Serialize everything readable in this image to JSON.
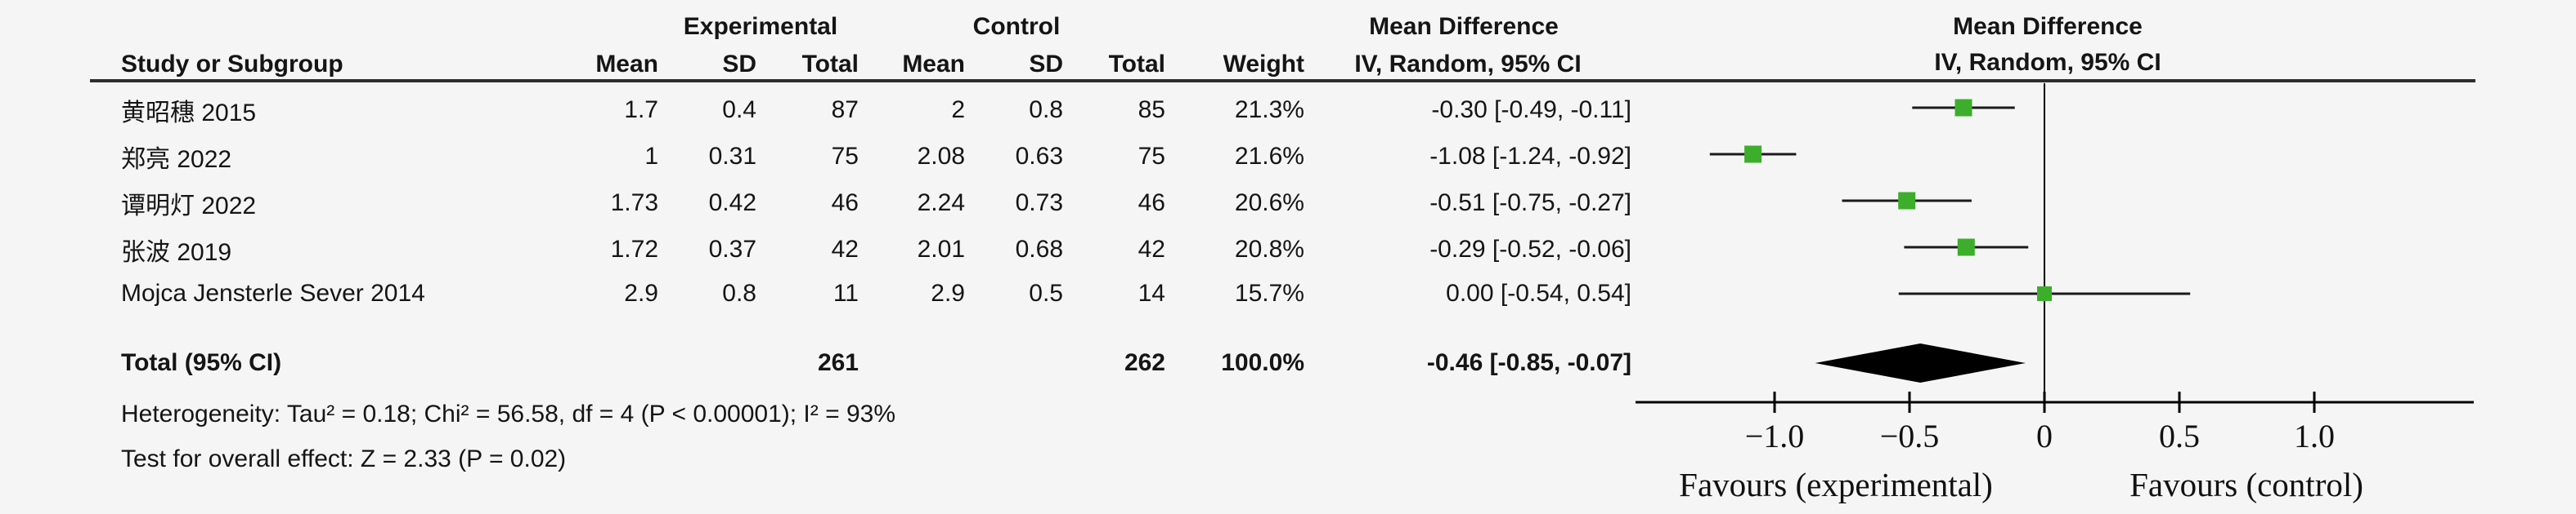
{
  "table": {
    "group_headers": {
      "experimental": "Experimental",
      "control": "Control",
      "md_text": "Mean Difference",
      "md_plot": "Mean Difference"
    },
    "sub_headers": {
      "study": "Study or Subgroup",
      "e_mean": "Mean",
      "e_sd": "SD",
      "e_total": "Total",
      "c_mean": "Mean",
      "c_sd": "SD",
      "c_total": "Total",
      "weight": "Weight",
      "ci": "IV, Random, 95% CI",
      "ci_plot": "IV, Random, 95% CI"
    },
    "rows": [
      {
        "study": "黄昭穗 2015",
        "e_mean": "1.7",
        "e_sd": "0.4",
        "e_total": "87",
        "c_mean": "2",
        "c_sd": "0.8",
        "c_total": "85",
        "weight": "21.3%",
        "ci": "-0.30 [-0.49, -0.11]"
      },
      {
        "study": "郑亮 2022",
        "e_mean": "1",
        "e_sd": "0.31",
        "e_total": "75",
        "c_mean": "2.08",
        "c_sd": "0.63",
        "c_total": "75",
        "weight": "21.6%",
        "ci": "-1.08 [-1.24, -0.92]"
      },
      {
        "study": "谭明灯 2022",
        "e_mean": "1.73",
        "e_sd": "0.42",
        "e_total": "46",
        "c_mean": "2.24",
        "c_sd": "0.73",
        "c_total": "46",
        "weight": "20.6%",
        "ci": "-0.51 [-0.75, -0.27]"
      },
      {
        "study": "张波 2019",
        "e_mean": "1.72",
        "e_sd": "0.37",
        "e_total": "42",
        "c_mean": "2.01",
        "c_sd": "0.68",
        "c_total": "42",
        "weight": "20.8%",
        "ci": "-0.29 [-0.52, -0.06]"
      },
      {
        "study": "Mojca Jensterle Sever 2014",
        "e_mean": "2.9",
        "e_sd": "0.8",
        "e_total": "11",
        "c_mean": "2.9",
        "c_sd": "0.5",
        "c_total": "14",
        "weight": "15.7%",
        "ci": "0.00 [-0.54, 0.54]"
      }
    ],
    "total_row": {
      "label": "Total (95% CI)",
      "e_total": "261",
      "c_total": "262",
      "weight": "100.0%",
      "ci": "-0.46 [-0.85, -0.07]"
    },
    "heterogeneity": "Heterogeneity: Tau² = 0.18; Chi² = 56.58, df = 4 (P < 0.00001); I² = 93%",
    "overall_effect": "Test for overall effect: Z = 2.33 (P = 0.02)"
  },
  "chart_data": {
    "type": "forest",
    "title": "Mean Difference, IV, Random, 95% CI",
    "studies": [
      {
        "name": "黄昭穗 2015",
        "md": -0.3,
        "lo": -0.49,
        "hi": -0.11,
        "weight_pct": 21.3
      },
      {
        "name": "郑亮 2022",
        "md": -1.08,
        "lo": -1.24,
        "hi": -0.92,
        "weight_pct": 21.6
      },
      {
        "name": "谭明灯 2022",
        "md": -0.51,
        "lo": -0.75,
        "hi": -0.27,
        "weight_pct": 20.6
      },
      {
        "name": "张波 2019",
        "md": -0.29,
        "lo": -0.52,
        "hi": -0.06,
        "weight_pct": 20.8
      },
      {
        "name": "Mojca Jensterle Sever 2014",
        "md": 0.0,
        "lo": -0.54,
        "hi": 0.54,
        "weight_pct": 15.7
      }
    ],
    "total": {
      "md": -0.46,
      "lo": -0.85,
      "hi": -0.07
    },
    "axis": {
      "ticks": [
        -1.0,
        -0.5,
        0,
        0.5,
        1.0
      ],
      "tick_labels": [
        "−1.0",
        "−0.5",
        "0",
        "0.5",
        "1.0"
      ],
      "xmin": -1.52,
      "xmax": 1.6
    },
    "xlabel_left": "Favours (experimental)",
    "xlabel_right": "Favours (control)",
    "marker_color": "#3cae2b",
    "line_color": "#1a1a1a",
    "diamond_color": "#000000"
  }
}
